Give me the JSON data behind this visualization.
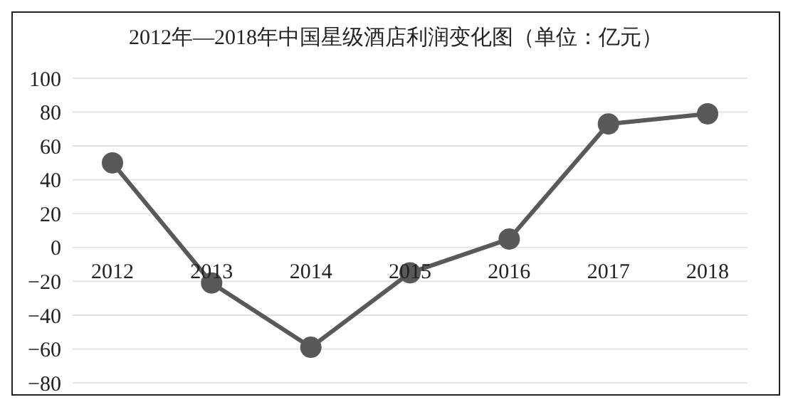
{
  "chart_data": {
    "type": "line",
    "title": "2012年—2018年中国星级酒店利润变化图（单位：亿元）",
    "categories": [
      "2012",
      "2013",
      "2014",
      "2015",
      "2016",
      "2017",
      "2018"
    ],
    "series": [
      {
        "color": "#595959",
        "values": [
          50,
          -21,
          -59,
          -15,
          5,
          73,
          79
        ]
      }
    ],
    "ylim": [
      -80,
      100
    ],
    "yticks": [
      -80,
      -60,
      -40,
      -20,
      0,
      20,
      40,
      60,
      80,
      100
    ],
    "grid": "y",
    "marker": "circle"
  }
}
